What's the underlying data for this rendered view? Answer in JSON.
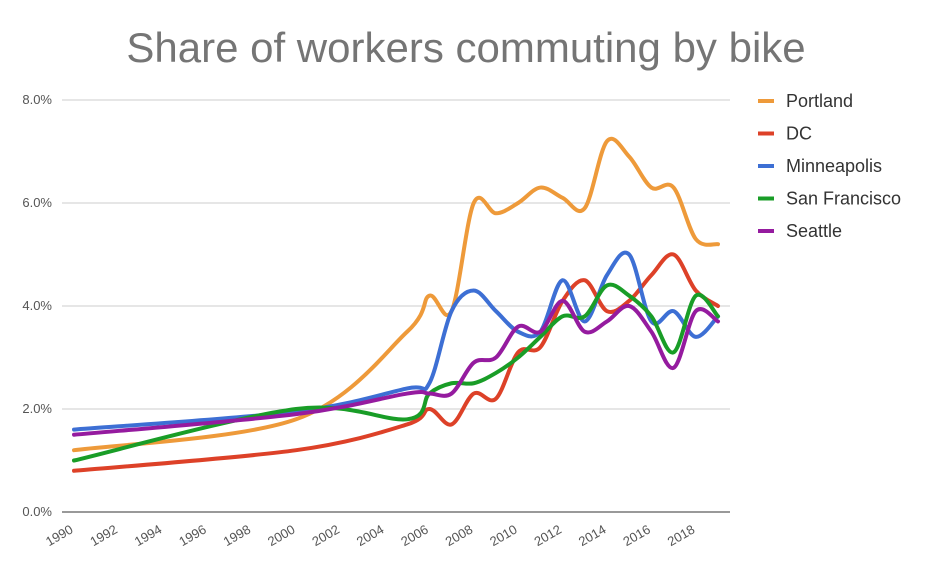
{
  "chart_data": {
    "type": "line",
    "title": "Share of workers commuting by bike",
    "xlabel": "",
    "ylabel": "",
    "xlim": [
      1990,
      2019
    ],
    "ylim": [
      0,
      8
    ],
    "y_ticks": [
      {
        "value": 0,
        "label": "0.0%"
      },
      {
        "value": 2,
        "label": "2.0%"
      },
      {
        "value": 4,
        "label": "4.0%"
      },
      {
        "value": 6,
        "label": "6.0%"
      },
      {
        "value": 8,
        "label": "8.0%"
      }
    ],
    "x_ticks": [
      "1990",
      "1992",
      "1994",
      "1996",
      "1998",
      "2000",
      "2002",
      "2004",
      "2006",
      "2008",
      "2010",
      "2012",
      "2014",
      "2016",
      "2018"
    ],
    "grid": true,
    "legend_position": "right",
    "series": [
      {
        "name": "Portland",
        "color": "#ee9a3a",
        "points": [
          [
            1990,
            1.2
          ],
          [
            2000,
            1.8
          ],
          [
            2005,
            3.5
          ],
          [
            2006,
            4.2
          ],
          [
            2007,
            3.9
          ],
          [
            2008,
            6.0
          ],
          [
            2009,
            5.8
          ],
          [
            2010,
            6.0
          ],
          [
            2011,
            6.3
          ],
          [
            2012,
            6.1
          ],
          [
            2013,
            5.9
          ],
          [
            2014,
            7.2
          ],
          [
            2015,
            6.9
          ],
          [
            2016,
            6.3
          ],
          [
            2017,
            6.3
          ],
          [
            2018,
            5.3
          ],
          [
            2019,
            5.2
          ]
        ]
      },
      {
        "name": "DC",
        "color": "#dd4128",
        "points": [
          [
            1990,
            0.8
          ],
          [
            2000,
            1.2
          ],
          [
            2005,
            1.7
          ],
          [
            2006,
            2.0
          ],
          [
            2007,
            1.7
          ],
          [
            2008,
            2.3
          ],
          [
            2009,
            2.2
          ],
          [
            2010,
            3.1
          ],
          [
            2011,
            3.2
          ],
          [
            2012,
            4.1
          ],
          [
            2013,
            4.5
          ],
          [
            2014,
            3.9
          ],
          [
            2015,
            4.1
          ],
          [
            2016,
            4.6
          ],
          [
            2017,
            5.0
          ],
          [
            2018,
            4.3
          ],
          [
            2019,
            4.0
          ]
        ]
      },
      {
        "name": "Minneapolis",
        "color": "#3d6fd4",
        "points": [
          [
            1990,
            1.6
          ],
          [
            2000,
            1.95
          ],
          [
            2005,
            2.4
          ],
          [
            2006,
            2.5
          ],
          [
            2007,
            3.9
          ],
          [
            2008,
            4.3
          ],
          [
            2009,
            3.9
          ],
          [
            2010,
            3.5
          ],
          [
            2011,
            3.5
          ],
          [
            2012,
            4.5
          ],
          [
            2013,
            3.7
          ],
          [
            2014,
            4.6
          ],
          [
            2015,
            5.0
          ],
          [
            2016,
            3.7
          ],
          [
            2017,
            3.9
          ],
          [
            2018,
            3.4
          ],
          [
            2019,
            3.8
          ]
        ]
      },
      {
        "name": "San Francisco",
        "color": "#199d27",
        "points": [
          [
            1990,
            1.0
          ],
          [
            2000,
            2.0
          ],
          [
            2005,
            1.8
          ],
          [
            2006,
            2.3
          ],
          [
            2007,
            2.5
          ],
          [
            2008,
            2.5
          ],
          [
            2009,
            2.7
          ],
          [
            2010,
            3.0
          ],
          [
            2011,
            3.4
          ],
          [
            2012,
            3.8
          ],
          [
            2013,
            3.8
          ],
          [
            2014,
            4.4
          ],
          [
            2015,
            4.2
          ],
          [
            2016,
            3.8
          ],
          [
            2017,
            3.1
          ],
          [
            2018,
            4.2
          ],
          [
            2019,
            3.8
          ]
        ]
      },
      {
        "name": "Seattle",
        "color": "#951b9f",
        "points": [
          [
            1990,
            1.5
          ],
          [
            2000,
            1.9
          ],
          [
            2005,
            2.3
          ],
          [
            2006,
            2.3
          ],
          [
            2007,
            2.3
          ],
          [
            2008,
            2.9
          ],
          [
            2009,
            3.0
          ],
          [
            2010,
            3.6
          ],
          [
            2011,
            3.5
          ],
          [
            2012,
            4.1
          ],
          [
            2013,
            3.5
          ],
          [
            2014,
            3.7
          ],
          [
            2015,
            4.0
          ],
          [
            2016,
            3.5
          ],
          [
            2017,
            2.8
          ],
          [
            2018,
            3.9
          ],
          [
            2019,
            3.7
          ]
        ]
      }
    ]
  }
}
